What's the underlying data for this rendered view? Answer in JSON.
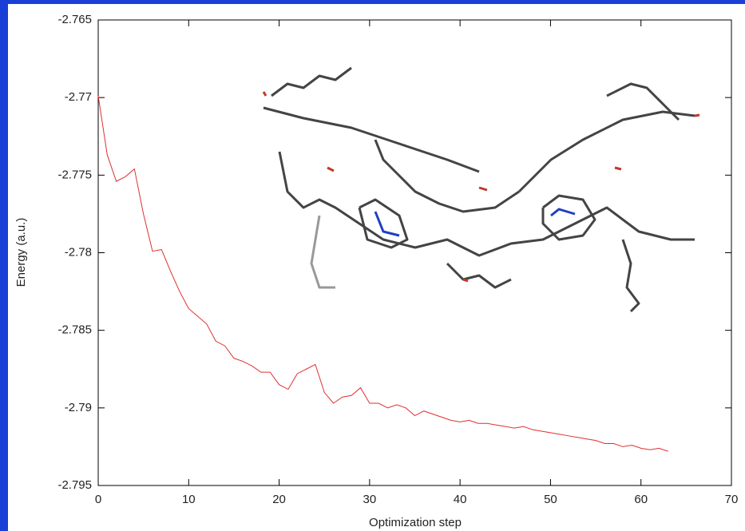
{
  "chart_data": {
    "type": "line",
    "xlabel": "Optimization step",
    "ylabel": "Energy (a.u.)",
    "color": "#e03030",
    "x": [
      0,
      1,
      2,
      3,
      4,
      5,
      6,
      7,
      8,
      9,
      10,
      11,
      12,
      13,
      14,
      15,
      16,
      17,
      18,
      19,
      20,
      21,
      22,
      23,
      24,
      25,
      26,
      27,
      28,
      29,
      30,
      31,
      32,
      33,
      34,
      35,
      36,
      37,
      38,
      39,
      40,
      41,
      42,
      43,
      44,
      45,
      46,
      47,
      48,
      49,
      50,
      51,
      52,
      53,
      54,
      55,
      56,
      57,
      58,
      59,
      60,
      61,
      62,
      63
    ],
    "values": [
      -2.7699,
      -2.7737,
      -2.7754,
      -2.7751,
      -2.7746,
      -2.7775,
      -2.7799,
      -2.7798,
      -2.7812,
      -2.7825,
      -2.7836,
      -2.7841,
      -2.7846,
      -2.7857,
      -2.786,
      -2.7868,
      -2.787,
      -2.7873,
      -2.7877,
      -2.7877,
      -2.7885,
      -2.7888,
      -2.7878,
      -2.7875,
      -2.7872,
      -2.789,
      -2.7897,
      -2.7893,
      -2.7892,
      -2.7887,
      -2.7897,
      -2.7897,
      -2.79,
      -2.7898,
      -2.79,
      -2.7905,
      -2.7902,
      -2.7904,
      -2.7906,
      -2.7908,
      -2.7909,
      -2.7908,
      -2.791,
      -2.791,
      -2.7911,
      -2.7912,
      -2.7913,
      -2.7912,
      -2.7914,
      -2.7915,
      -2.7916,
      -2.7917,
      -2.7918,
      -2.7919,
      -2.792,
      -2.7921,
      -2.7923,
      -2.7923,
      -2.7925,
      -2.7924,
      -2.7926,
      -2.7927,
      -2.7926,
      -2.7928
    ],
    "xlim": [
      0,
      70
    ],
    "xticks": [
      0,
      10,
      20,
      30,
      40,
      50,
      60,
      70
    ],
    "ylim": [
      -2.795,
      -2.765
    ],
    "yticks": [
      -2.795,
      -2.79,
      -2.785,
      -2.78,
      -2.775,
      -2.77,
      -2.765
    ]
  }
}
